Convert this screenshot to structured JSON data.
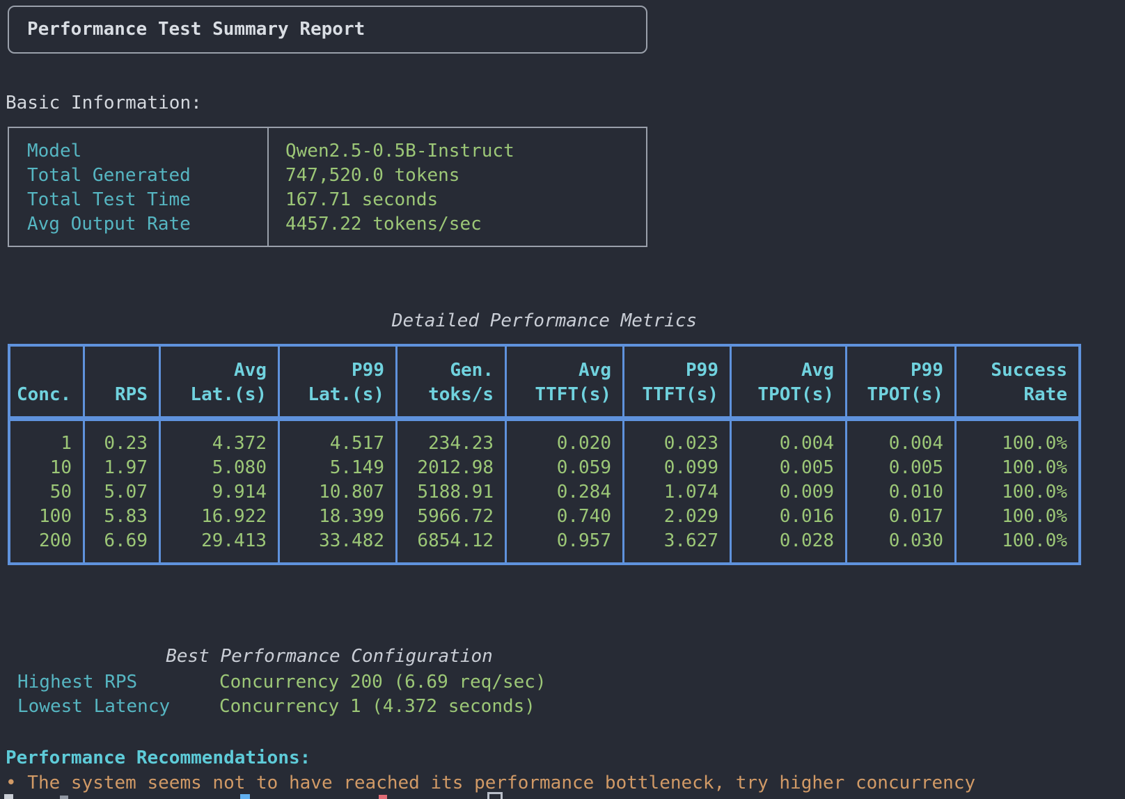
{
  "report": {
    "title": "Performance Test Summary Report"
  },
  "basic_info": {
    "heading": "Basic Information:",
    "rows": [
      {
        "label": "Model",
        "value": "Qwen2.5-0.5B-Instruct"
      },
      {
        "label": "Total Generated",
        "value": "747,520.0 tokens"
      },
      {
        "label": "Total Test Time",
        "value": "167.71 seconds"
      },
      {
        "label": "Avg Output Rate",
        "value": "4457.22 tokens/sec"
      }
    ]
  },
  "metrics": {
    "title": "Detailed Performance Metrics",
    "columns": [
      "Conc.",
      "RPS",
      "Avg\nLat.(s)",
      "P99\nLat.(s)",
      "Gen.\ntoks/s",
      "Avg\nTTFT(s)",
      "P99\nTTFT(s)",
      "Avg\nTPOT(s)",
      "P99\nTPOT(s)",
      "Success\nRate"
    ],
    "rows": [
      [
        "1",
        "0.23",
        "4.372",
        "4.517",
        "234.23",
        "0.020",
        "0.023",
        "0.004",
        "0.004",
        "100.0%"
      ],
      [
        "10",
        "1.97",
        "5.080",
        "5.149",
        "2012.98",
        "0.059",
        "0.099",
        "0.005",
        "0.005",
        "100.0%"
      ],
      [
        "50",
        "5.07",
        "9.914",
        "10.807",
        "5188.91",
        "0.284",
        "1.074",
        "0.009",
        "0.010",
        "100.0%"
      ],
      [
        "100",
        "5.83",
        "16.922",
        "18.399",
        "5966.72",
        "0.740",
        "2.029",
        "0.016",
        "0.017",
        "100.0%"
      ],
      [
        "200",
        "6.69",
        "29.413",
        "33.482",
        "6854.12",
        "0.957",
        "3.627",
        "0.028",
        "0.030",
        "100.0%"
      ]
    ]
  },
  "best_config": {
    "title": "Best Performance Configuration",
    "rows": [
      {
        "label": "Highest RPS",
        "value": "Concurrency 200 (6.69 req/sec)"
      },
      {
        "label": "Lowest Latency",
        "value": "Concurrency 1 (4.372 seconds)"
      }
    ]
  },
  "recommendations": {
    "heading": "Performance Recommendations:",
    "items": [
      "• The system seems not to have reached its performance bottleneck, try higher concurrency"
    ]
  },
  "colors": {
    "background": "#272b35",
    "label_cyan": "#56b6c2",
    "header_cyan": "#70d2de",
    "value_green": "#9cc777",
    "table_border_blue": "#5f92dc",
    "box_border_gray": "#9aa0ab",
    "recommendation_orange": "#d19a66",
    "heading_text": "#d8dce2"
  }
}
